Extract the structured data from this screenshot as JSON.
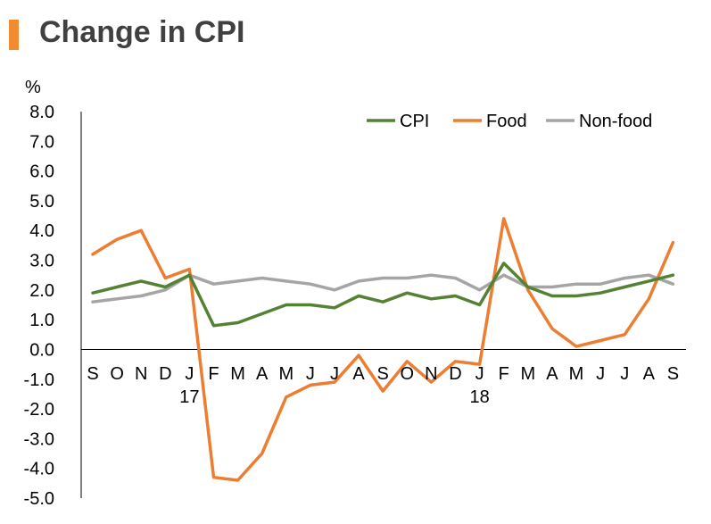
{
  "title": "Change in CPI",
  "colors": {
    "accent": "#f28b30",
    "cpi": "#548235",
    "food": "#ed7d31",
    "non_food": "#a5a5a5"
  },
  "chart_data": {
    "type": "line",
    "title": "Change in CPI",
    "unit": "%",
    "ylim": [
      -5.0,
      8.0
    ],
    "yticks": [
      "8.0",
      "7.0",
      "6.0",
      "5.0",
      "4.0",
      "3.0",
      "2.0",
      "1.0",
      "0.0",
      "-1.0",
      "-2.0",
      "-3.0",
      "-4.0",
      "-5.0"
    ],
    "categories": [
      "S",
      "O",
      "N",
      "D",
      "J",
      "F",
      "M",
      "A",
      "M",
      "J",
      "J",
      "A",
      "S",
      "O",
      "N",
      "D",
      "J",
      "F",
      "M",
      "A",
      "M",
      "J",
      "J",
      "A",
      "S"
    ],
    "year_labels": [
      {
        "index": 4,
        "text": "17"
      },
      {
        "index": 16,
        "text": "18"
      }
    ],
    "legend_position": "top-right",
    "grid": false,
    "series": [
      {
        "name": "CPI",
        "values": [
          1.9,
          2.1,
          2.3,
          2.1,
          2.5,
          0.8,
          0.9,
          1.2,
          1.5,
          1.5,
          1.4,
          1.8,
          1.6,
          1.9,
          1.7,
          1.8,
          1.5,
          2.9,
          2.1,
          1.8,
          1.8,
          1.9,
          2.1,
          2.3,
          2.5
        ]
      },
      {
        "name": "Food",
        "values": [
          3.2,
          3.7,
          4.0,
          2.4,
          2.7,
          -4.3,
          -4.4,
          -3.5,
          -1.6,
          -1.2,
          -1.1,
          -0.2,
          -1.4,
          -0.4,
          -1.1,
          -0.4,
          -0.5,
          4.4,
          2.0,
          0.7,
          0.1,
          0.3,
          0.5,
          1.7,
          3.6
        ]
      },
      {
        "name": "Non-food",
        "values": [
          1.6,
          1.7,
          1.8,
          2.0,
          2.5,
          2.2,
          2.3,
          2.4,
          2.3,
          2.2,
          2.0,
          2.3,
          2.4,
          2.4,
          2.5,
          2.4,
          2.0,
          2.5,
          2.1,
          2.1,
          2.2,
          2.2,
          2.4,
          2.5,
          2.2
        ]
      }
    ]
  }
}
